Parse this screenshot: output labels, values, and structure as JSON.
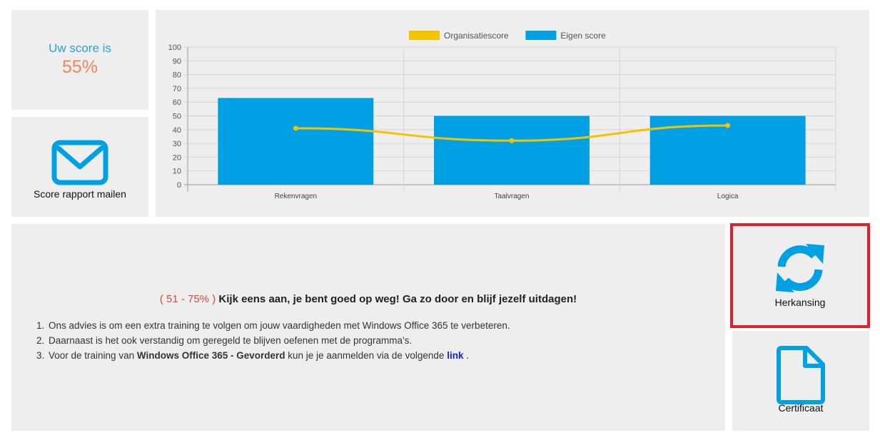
{
  "score": {
    "label": "Uw score is",
    "value": "55%"
  },
  "mail": {
    "label": "Score rapport mailen",
    "icon": "envelope-icon"
  },
  "retake": {
    "label": "Herkansing",
    "icon": "refresh-icon"
  },
  "certificate": {
    "label": "Certificaat",
    "icon": "document-icon"
  },
  "advice": {
    "range": "( 51 - 75% )",
    "headline": "Kijk eens aan, je bent goed op weg! Ga zo door en blijf jezelf uitdagen!",
    "items": {
      "i1": "Ons advies is om een extra training te volgen om jouw vaardigheden met Windows Office 365 te verbeteren.",
      "i2": "Daarnaast is het ook verstandig om geregeld te blijven oefenen met de programma's.",
      "i3_before": "Voor de training van ",
      "i3_bold": "Windows Office 365 - Gevorderd",
      "i3_middle": " kun je je aanmelden via de volgende ",
      "i3_link": "link",
      "i3_after": " ."
    }
  },
  "colors": {
    "accent": "#00a0e4",
    "line": "#f5c200",
    "score": "#f4845a",
    "highlight": "#e0202a"
  },
  "chart_data": {
    "type": "bar",
    "categories": [
      "Rekenvragen",
      "Taalvragen",
      "Logica"
    ],
    "series": [
      {
        "name": "Organisatiescore",
        "type": "line",
        "color": "#f5c200",
        "values": [
          41,
          32,
          43
        ]
      },
      {
        "name": "Eigen score",
        "type": "bar",
        "color": "#00a0e4",
        "values": [
          63,
          50,
          50
        ]
      }
    ],
    "ylim": [
      0,
      100
    ],
    "yticks": [
      0,
      10,
      20,
      30,
      40,
      50,
      60,
      70,
      80,
      90,
      100
    ],
    "grid": true,
    "legend": "top-center"
  }
}
